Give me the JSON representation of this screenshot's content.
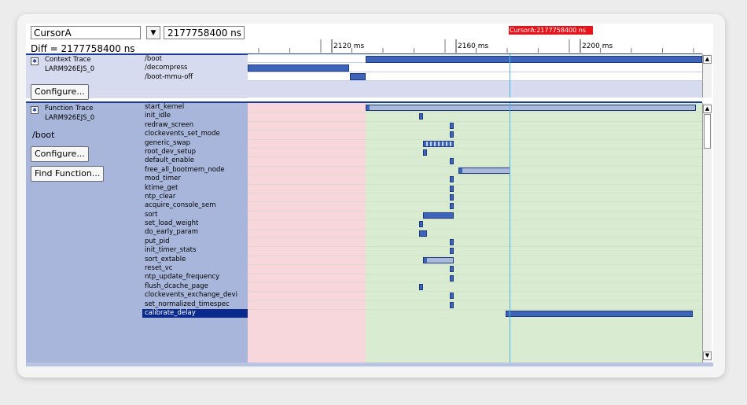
{
  "toolbar": {
    "cursor_select_value": "CursorA",
    "dropdown_icon": "chevron-down-icon",
    "time_value": "2177758400 ns",
    "diff_label": "Diff = 2177758400 ns"
  },
  "ruler": {
    "tick_labels": [
      "2120 ms",
      "2160 ms",
      "2200 ms"
    ],
    "cursor_flag": "CursorA:2177758400 ns"
  },
  "context_trace": {
    "title": "Context Trace",
    "subtitle": "LARM926EJS_0",
    "configure_label": "Configure...",
    "rows": [
      "/boot",
      "/decompress",
      "/boot-mmu-off"
    ]
  },
  "function_trace": {
    "title": "Function Trace",
    "subtitle": "LARM926EJS_0",
    "context_label": "/boot",
    "configure_label": "Configure...",
    "find_label": "Find Function...",
    "rows": [
      "start_kernel",
      "init_idle",
      "redraw_screen",
      "clockevents_set_mode",
      "generic_swap",
      "root_dev_setup",
      "default_enable",
      "free_all_bootmem_node",
      "mod_timer",
      "ktime_get",
      "ntp_clear",
      "acquire_console_sem",
      "sort",
      "set_load_weight",
      "do_early_param",
      "put_pid",
      "init_timer_stats",
      "sort_extable",
      "reset_vc",
      "ntp_update_frequency",
      "flush_dcache_page",
      "clockevents_exchange_devi",
      "set_normalized_timespec",
      "calibrate_delay"
    ],
    "selected_row": "calibrate_delay"
  },
  "colors": {
    "label_bg": "#a7b6da",
    "context_bg": "#d7dbef",
    "region_before": "#f7d6dc",
    "region_after": "#d9ecd2",
    "bar": "#3d64b8",
    "cursor": "#e8141b"
  }
}
